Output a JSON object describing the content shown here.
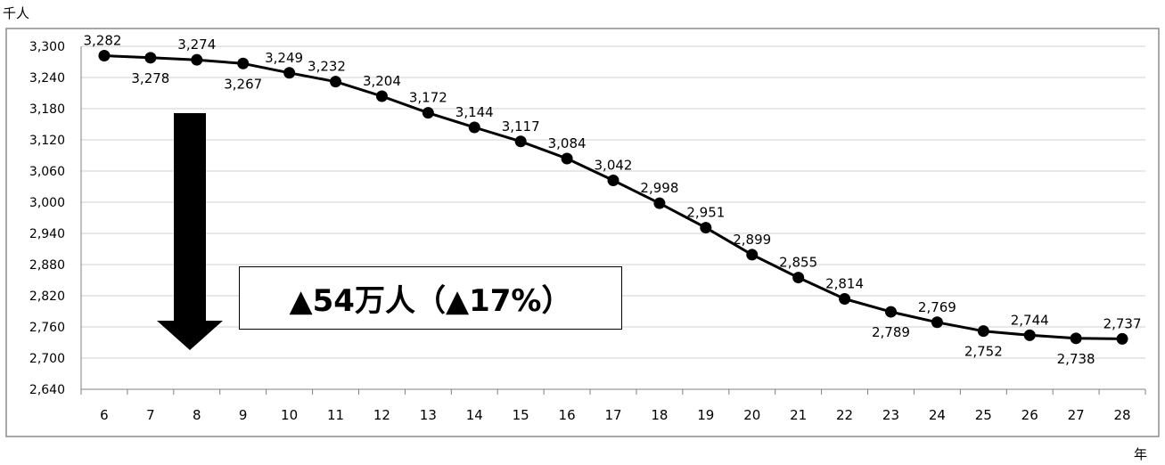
{
  "chart_data": {
    "type": "line",
    "y_unit": "千人",
    "x_unit": "年",
    "x": [
      "6",
      "7",
      "8",
      "9",
      "10",
      "11",
      "12",
      "13",
      "14",
      "15",
      "16",
      "17",
      "18",
      "19",
      "20",
      "21",
      "22",
      "23",
      "24",
      "25",
      "26",
      "27",
      "28"
    ],
    "series": [
      {
        "values": [
          3282,
          3278,
          3274,
          3267,
          3249,
          3232,
          3204,
          3172,
          3144,
          3117,
          3084,
          3042,
          2998,
          2951,
          2899,
          2855,
          2814,
          2789,
          2769,
          2752,
          2744,
          2738,
          2737
        ]
      }
    ],
    "data_labels": [
      "3,282",
      "3,278",
      "3,274",
      "3,267",
      "3,249",
      "3,232",
      "3,204",
      "3,172",
      "3,144",
      "3,117",
      "3,084",
      "3,042",
      "2,998",
      "2,951",
      "2,899",
      "2,855",
      "2,814",
      "2,789",
      "2,769",
      "2,752",
      "2,744",
      "2,738",
      "2,737"
    ],
    "ylim": [
      2640,
      3300
    ],
    "y_ticks": [
      2640,
      2700,
      2760,
      2820,
      2880,
      2940,
      3000,
      3060,
      3120,
      3180,
      3240,
      3300
    ],
    "y_tick_labels": [
      "2,640",
      "2,700",
      "2,760",
      "2,820",
      "2,880",
      "2,940",
      "3,000",
      "3,060",
      "3,120",
      "3,180",
      "3,240",
      "3,300"
    ],
    "grid": true,
    "legend": "none",
    "annotation": "▲54万人（▲17%）",
    "colors": {
      "line": "#000000",
      "marker": "#000000",
      "grid": "#d0d0d0",
      "frame": "#8c8c8c",
      "arrow": "#000000"
    }
  }
}
